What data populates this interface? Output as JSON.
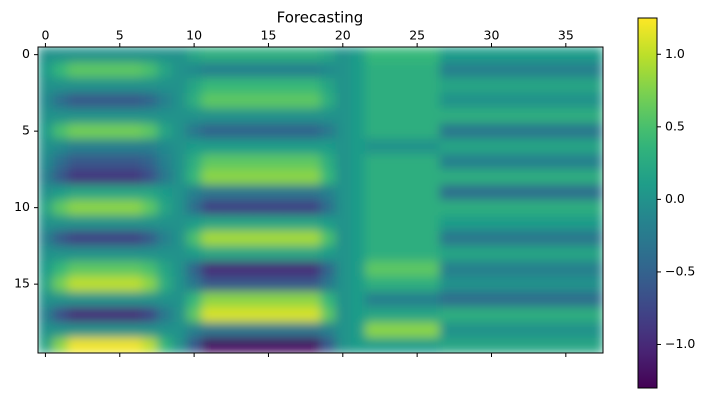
{
  "chart_data": {
    "type": "heatmap",
    "title": "Forecasting",
    "colormap": "viridis",
    "clim": [
      -1.3,
      1.25
    ],
    "xlim": [
      -0.5,
      37.5
    ],
    "ylim": [
      19.5,
      -0.5
    ],
    "xticks": [
      0,
      5,
      10,
      15,
      20,
      25,
      30,
      35
    ],
    "yticks": [
      0,
      5,
      10,
      15
    ],
    "colorbar_ticks": [
      {
        "value": -1.0,
        "label": "−1.0"
      },
      {
        "value": -0.5,
        "label": "−0.5"
      },
      {
        "value": 0,
        "label": "0.0"
      },
      0.5,
      {
        "value": 1.0,
        "label": "1.0"
      }
    ],
    "z": [
      [
        0,
        0,
        0,
        0,
        0,
        0,
        0,
        0,
        0,
        0,
        0.2,
        0.3,
        0.3,
        0.3,
        0.3,
        0.3,
        0.3,
        0.3,
        0.3,
        0.2,
        0,
        0.1,
        0.4,
        0.4,
        0.4,
        0.4,
        0.4,
        0.1,
        0.1,
        0.1,
        0.1,
        0.1,
        0.1,
        0.1,
        0.1,
        0.1,
        0.1,
        0.1
      ],
      [
        0.1,
        0.4,
        0.6,
        0.6,
        0.6,
        0.6,
        0.6,
        0.5,
        0.2,
        0,
        -0.1,
        -0.2,
        -0.2,
        -0.2,
        -0.2,
        -0.2,
        -0.2,
        -0.2,
        -0.2,
        -0.1,
        0,
        0.1,
        0.3,
        0.3,
        0.3,
        0.3,
        0.3,
        -0.2,
        -0.2,
        -0.2,
        -0.2,
        -0.2,
        -0.2,
        -0.2,
        -0.2,
        -0.2,
        -0.2,
        -0.2
      ],
      [
        0,
        0,
        0,
        0,
        0,
        0,
        0,
        0,
        0,
        0,
        0.2,
        0.4,
        0.4,
        0.4,
        0.4,
        0.4,
        0.4,
        0.4,
        0.4,
        0.2,
        0,
        0.1,
        0.3,
        0.3,
        0.3,
        0.3,
        0.3,
        0.2,
        0.2,
        0.2,
        0.2,
        0.2,
        0.2,
        0.2,
        0.2,
        0.2,
        0.2,
        0.2
      ],
      [
        -0.1,
        -0.4,
        -0.6,
        -0.6,
        -0.6,
        -0.6,
        -0.6,
        -0.5,
        -0.2,
        0,
        0.3,
        0.6,
        0.6,
        0.6,
        0.6,
        0.6,
        0.6,
        0.6,
        0.6,
        0.3,
        0,
        0.1,
        0.3,
        0.3,
        0.3,
        0.3,
        0.3,
        0,
        0,
        0,
        0,
        0,
        0,
        0,
        0,
        0,
        0,
        0
      ],
      [
        0,
        0,
        0,
        0,
        0,
        0,
        0,
        0,
        0,
        0,
        0,
        0,
        0,
        0,
        0,
        0,
        0,
        0,
        0,
        0,
        0,
        0.1,
        0.3,
        0.3,
        0.3,
        0.3,
        0.3,
        0.3,
        0.3,
        0.3,
        0.3,
        0.3,
        0.3,
        0.3,
        0.3,
        0.3,
        0.3,
        0.3
      ],
      [
        0.1,
        0.5,
        0.7,
        0.7,
        0.7,
        0.7,
        0.7,
        0.6,
        0.2,
        0,
        -0.3,
        -0.5,
        -0.5,
        -0.5,
        -0.5,
        -0.5,
        -0.5,
        -0.5,
        -0.5,
        -0.3,
        0,
        0.1,
        0.3,
        0.3,
        0.3,
        0.3,
        0.3,
        -0.3,
        -0.3,
        -0.3,
        -0.3,
        -0.3,
        -0.3,
        -0.3,
        -0.3,
        -0.3,
        -0.3,
        -0.3
      ],
      [
        0,
        -0.1,
        -0.2,
        -0.2,
        -0.2,
        -0.2,
        -0.2,
        -0.2,
        -0.1,
        0,
        0.1,
        0.1,
        0.1,
        0.1,
        0.1,
        0.1,
        0.1,
        0.1,
        0.1,
        0.1,
        0,
        0.1,
        0,
        0,
        0,
        0,
        0,
        0.2,
        0.2,
        0.2,
        0.2,
        0.2,
        0.2,
        0.2,
        0.2,
        0.2,
        0.2,
        0.2
      ],
      [
        -0.1,
        -0.4,
        -0.6,
        -0.6,
        -0.6,
        -0.6,
        -0.6,
        -0.5,
        -0.2,
        0,
        0.3,
        0.6,
        0.6,
        0.6,
        0.6,
        0.6,
        0.6,
        0.6,
        0.6,
        0.3,
        0,
        0.1,
        0.3,
        0.3,
        0.3,
        0.3,
        0.3,
        -0.2,
        -0.2,
        -0.2,
        -0.2,
        -0.2,
        -0.2,
        -0.2,
        -0.2,
        -0.2,
        -0.2,
        -0.2
      ],
      [
        -0.2,
        -0.6,
        -0.9,
        -0.9,
        -0.9,
        -0.9,
        -0.9,
        -0.7,
        -0.3,
        0,
        0.4,
        0.8,
        0.8,
        0.8,
        0.8,
        0.8,
        0.8,
        0.8,
        0.8,
        0.4,
        0,
        0.1,
        0.3,
        0.3,
        0.3,
        0.3,
        0.3,
        0.3,
        0.3,
        0.3,
        0.3,
        0.3,
        0.3,
        0.3,
        0.3,
        0.3,
        0.3,
        0.3
      ],
      [
        0,
        0.1,
        0.2,
        0.2,
        0.2,
        0.2,
        0.2,
        0.2,
        0.1,
        0,
        -0.2,
        -0.3,
        -0.3,
        -0.3,
        -0.3,
        -0.3,
        -0.3,
        -0.3,
        -0.3,
        -0.2,
        0,
        0.1,
        0.3,
        0.3,
        0.3,
        0.3,
        0.3,
        -0.4,
        -0.4,
        -0.4,
        -0.4,
        -0.4,
        -0.4,
        -0.4,
        -0.4,
        -0.4,
        -0.4,
        -0.4
      ],
      [
        0.2,
        0.6,
        0.8,
        0.8,
        0.8,
        0.8,
        0.8,
        0.6,
        0.2,
        0,
        -0.4,
        -0.8,
        -0.8,
        -0.8,
        -0.8,
        -0.8,
        -0.8,
        -0.8,
        -0.8,
        -0.4,
        0,
        0.1,
        0.3,
        0.3,
        0.3,
        0.3,
        0.3,
        0.3,
        0.3,
        0.3,
        0.3,
        0.3,
        0.3,
        0.3,
        0.3,
        0.3,
        0.3,
        0.3
      ],
      [
        0,
        0,
        0,
        0,
        0,
        0,
        0,
        0,
        0,
        0,
        0.1,
        0.2,
        0.2,
        0.2,
        0.2,
        0.2,
        0.2,
        0.2,
        0.2,
        0.1,
        0,
        0.1,
        0.3,
        0.3,
        0.3,
        0.3,
        0.3,
        0.1,
        0.1,
        0.1,
        0.1,
        0.1,
        0.1,
        0.1,
        0.1,
        0.1,
        0.1,
        0.1
      ],
      [
        -0.2,
        -0.6,
        -0.8,
        -0.8,
        -0.8,
        -0.8,
        -0.8,
        -0.6,
        -0.2,
        0,
        0.5,
        0.9,
        0.9,
        0.9,
        0.9,
        0.9,
        0.9,
        0.9,
        0.9,
        0.5,
        0,
        0.1,
        0.3,
        0.3,
        0.3,
        0.3,
        0.3,
        -0.3,
        -0.3,
        -0.3,
        -0.3,
        -0.3,
        -0.3,
        -0.3,
        -0.3,
        -0.3,
        -0.3,
        -0.3
      ],
      [
        0,
        0,
        0,
        0,
        0,
        0,
        0,
        0,
        0,
        0,
        0.1,
        0.2,
        0.2,
        0.2,
        0.2,
        0.2,
        0.2,
        0.2,
        0.2,
        0.1,
        0,
        0.1,
        0.3,
        0.3,
        0.3,
        0.3,
        0.3,
        0.2,
        0.2,
        0.2,
        0.2,
        0.2,
        0.2,
        0.2,
        0.2,
        0.2,
        0.2,
        0.2
      ],
      [
        0.1,
        0.4,
        0.6,
        0.6,
        0.6,
        0.6,
        0.6,
        0.5,
        0.2,
        0,
        -0.5,
        -1,
        -1,
        -1,
        -1,
        -1,
        -1,
        -1,
        -1,
        -0.5,
        0,
        0.1,
        0.6,
        0.6,
        0.6,
        0.6,
        0.6,
        -0.2,
        -0.2,
        -0.2,
        -0.2,
        -0.2,
        -0.2,
        -0.2,
        -0.2,
        -0.2,
        -0.2,
        -0.2
      ],
      [
        0.2,
        0.7,
        1,
        1,
        1,
        1,
        1,
        0.8,
        0.3,
        0,
        -0.3,
        -0.6,
        -0.6,
        -0.6,
        -0.6,
        -0.6,
        -0.6,
        -0.6,
        -0.6,
        -0.3,
        0,
        0.1,
        0.3,
        0.3,
        0.3,
        0.3,
        0.3,
        0,
        0,
        0,
        0,
        0,
        0,
        0,
        0,
        0,
        0,
        0
      ],
      [
        0,
        0,
        0,
        0,
        0,
        0,
        0,
        0,
        0,
        0,
        0.4,
        0.8,
        0.8,
        0.8,
        0.8,
        0.8,
        0.8,
        0.8,
        0.8,
        0.4,
        0,
        0.1,
        -0.2,
        -0.2,
        -0.2,
        -0.2,
        -0.2,
        -0.4,
        -0.4,
        -0.4,
        -0.4,
        -0.4,
        -0.4,
        -0.4,
        -0.4,
        -0.4,
        -0.4,
        -0.4
      ],
      [
        -0.2,
        -0.7,
        -1,
        -1,
        -1,
        -1,
        -1,
        -0.8,
        -0.3,
        0,
        0.6,
        1.1,
        1.1,
        1.1,
        1.1,
        1.1,
        1.1,
        1.1,
        1.1,
        0.6,
        0,
        0.1,
        0.2,
        0.2,
        0.2,
        0.2,
        0.2,
        0.3,
        0.3,
        0.3,
        0.3,
        0.3,
        0.3,
        0.3,
        0.3,
        0.3,
        0.3,
        0.3
      ],
      [
        0,
        0,
        0,
        0,
        0,
        0,
        0,
        0,
        0,
        0,
        -0.2,
        -0.3,
        -0.3,
        -0.3,
        -0.3,
        -0.3,
        -0.3,
        -0.3,
        -0.3,
        -0.2,
        0,
        0.1,
        0.8,
        0.8,
        0.8,
        0.8,
        0.8,
        0,
        0,
        0,
        0,
        0,
        0,
        0,
        0,
        0,
        0,
        0
      ],
      [
        0.2,
        0.8,
        1.2,
        1.2,
        1.2,
        1.2,
        1.2,
        1,
        0.4,
        0,
        -0.6,
        -1.2,
        -1.2,
        -1.2,
        -1.2,
        -1.2,
        -1.2,
        -1.2,
        -1.2,
        -0.6,
        0,
        0.1,
        0.1,
        0.1,
        0.1,
        0.1,
        0.1,
        0.2,
        0.2,
        0.2,
        0.2,
        0.2,
        0.2,
        0.2,
        0.2,
        0.2,
        0.2,
        0.2
      ]
    ]
  }
}
